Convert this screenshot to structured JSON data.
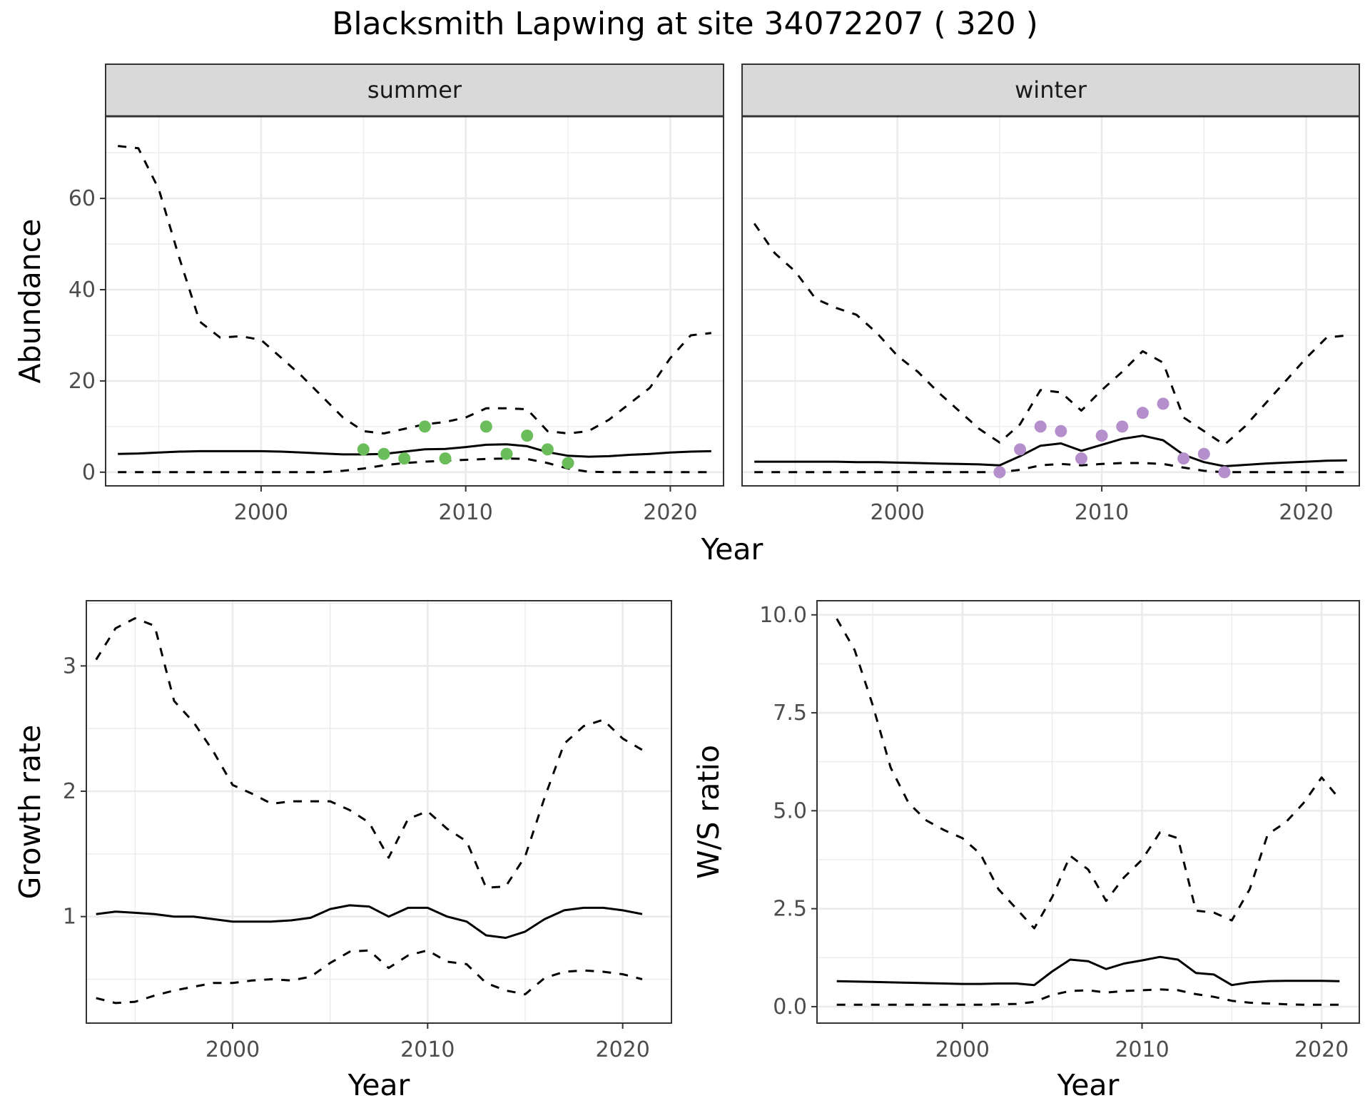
{
  "title": "Blacksmith Lapwing at site 34072207 ( 320 )",
  "colors": {
    "summer_points": "#6ABD5A",
    "winter_points": "#B58FCB",
    "line": "#000000",
    "strip_fill": "#D9D9D9",
    "grid": "#EBEBEB",
    "panel_border": "#333333"
  },
  "chart_data": [
    {
      "type": "line",
      "id": "abundance",
      "ylabel": "Abundance",
      "xlabel": "Year",
      "xlim": [
        1992.4,
        2022.6
      ],
      "ylim": [
        -3,
        78
      ],
      "xticks": [
        2000,
        2010,
        2020
      ],
      "yticks": [
        0,
        20,
        40,
        60
      ],
      "grid": true,
      "facets": [
        {
          "label": "summer",
          "x": [
            1993,
            1994,
            1995,
            1996,
            1997,
            1998,
            1999,
            2000,
            2001,
            2002,
            2003,
            2004,
            2005,
            2006,
            2007,
            2008,
            2009,
            2010,
            2011,
            2012,
            2013,
            2014,
            2015,
            2016,
            2017,
            2018,
            2019,
            2020,
            2021,
            2022
          ],
          "series": [
            {
              "style": "dashed",
              "values": [
                71.5,
                71,
                62,
                47,
                33,
                29.5,
                29.8,
                29,
                25,
                21,
                16.5,
                12,
                9,
                8.5,
                9.5,
                10.5,
                11,
                12,
                14,
                14,
                13.8,
                9,
                8.5,
                9,
                11.5,
                15,
                18.5,
                25,
                30,
                30.5
              ]
            },
            {
              "style": "solid",
              "values": [
                4,
                4.1,
                4.3,
                4.5,
                4.6,
                4.6,
                4.6,
                4.6,
                4.5,
                4.3,
                4.1,
                3.9,
                3.9,
                4,
                4.5,
                5,
                5.1,
                5.5,
                6,
                6.1,
                5.7,
                4.4,
                3.6,
                3.4,
                3.5,
                3.8,
                4,
                4.3,
                4.5,
                4.6
              ]
            },
            {
              "style": "dashed",
              "values": [
                0,
                0,
                0,
                0,
                0,
                0,
                0,
                0,
                0,
                0,
                0,
                0.3,
                0.8,
                1.5,
                2,
                2.3,
                2.5,
                2.7,
                2.9,
                3,
                2.9,
                2,
                0.8,
                0.1,
                0,
                0,
                0,
                0,
                0,
                0
              ]
            }
          ],
          "points": {
            "x": [
              2005,
              2006,
              2007,
              2008,
              2009,
              2011,
              2012,
              2013,
              2014,
              2015
            ],
            "y": [
              5,
              4,
              3,
              10,
              3,
              10,
              4,
              8,
              5,
              2
            ]
          }
        },
        {
          "label": "winter",
          "x": [
            1993,
            1994,
            1995,
            1996,
            1997,
            1998,
            1999,
            2000,
            2001,
            2002,
            2003,
            2004,
            2005,
            2006,
            2007,
            2008,
            2009,
            2010,
            2011,
            2012,
            2013,
            2014,
            2015,
            2016,
            2017,
            2018,
            2019,
            2020,
            2021,
            2022
          ],
          "series": [
            {
              "style": "dashed",
              "values": [
                54.5,
                48,
                44,
                38,
                36,
                34.5,
                30.5,
                25.5,
                22,
                17.5,
                13.5,
                9.5,
                6.5,
                10.5,
                18,
                17.5,
                13.5,
                18,
                22,
                26.5,
                24,
                12,
                9,
                6,
                10,
                15,
                20,
                25,
                29.5,
                30
              ]
            },
            {
              "style": "solid",
              "values": [
                2.3,
                2.3,
                2.3,
                2.3,
                2.3,
                2.2,
                2.2,
                2.1,
                2,
                1.9,
                1.8,
                1.7,
                1.5,
                3.5,
                5.8,
                6.3,
                4.7,
                6,
                7.3,
                8,
                7,
                3.8,
                2.2,
                1.3,
                1.6,
                1.9,
                2.1,
                2.3,
                2.5,
                2.6
              ]
            },
            {
              "style": "dashed",
              "values": [
                0,
                0,
                0,
                0,
                0,
                0,
                0,
                0,
                0,
                0,
                0,
                0,
                0,
                0.5,
                1.5,
                1.8,
                1.5,
                1.8,
                2,
                2,
                1.8,
                1,
                0.3,
                0,
                0,
                0,
                0,
                0,
                0,
                0
              ]
            }
          ],
          "points": {
            "x": [
              2005,
              2006,
              2007,
              2008,
              2009,
              2010,
              2011,
              2012,
              2013,
              2014,
              2015,
              2016
            ],
            "y": [
              0,
              5,
              10,
              9,
              3,
              8,
              10,
              13,
              15,
              3,
              4,
              0
            ]
          }
        }
      ]
    },
    {
      "type": "line",
      "id": "growth",
      "ylabel": "Growth rate",
      "xlabel": "Year",
      "xlim": [
        1992.5,
        2022.5
      ],
      "ylim": [
        0.15,
        3.52
      ],
      "xticks": [
        2000,
        2010,
        2020
      ],
      "yticks": [
        1,
        2,
        3
      ],
      "grid": true,
      "x": [
        1993,
        1994,
        1995,
        1996,
        1997,
        1998,
        1999,
        2000,
        2001,
        2002,
        2003,
        2004,
        2005,
        2006,
        2007,
        2008,
        2009,
        2010,
        2011,
        2012,
        2013,
        2014,
        2015,
        2016,
        2017,
        2018,
        2019,
        2020,
        2021
      ],
      "series": [
        {
          "style": "dashed",
          "values": [
            3.05,
            3.3,
            3.38,
            3.32,
            2.72,
            2.55,
            2.32,
            2.05,
            1.98,
            1.9,
            1.92,
            1.92,
            1.92,
            1.85,
            1.75,
            1.47,
            1.78,
            1.84,
            1.7,
            1.6,
            1.23,
            1.24,
            1.48,
            1.95,
            2.38,
            2.52,
            2.57,
            2.42,
            2.33
          ]
        },
        {
          "style": "solid",
          "values": [
            1.02,
            1.04,
            1.03,
            1.02,
            1,
            1,
            0.98,
            0.96,
            0.96,
            0.96,
            0.97,
            0.99,
            1.06,
            1.09,
            1.08,
            1,
            1.07,
            1.07,
            1,
            0.96,
            0.85,
            0.83,
            0.88,
            0.98,
            1.05,
            1.07,
            1.07,
            1.05,
            1.02
          ]
        },
        {
          "style": "dashed",
          "values": [
            0.35,
            0.31,
            0.32,
            0.37,
            0.41,
            0.44,
            0.47,
            0.47,
            0.49,
            0.5,
            0.49,
            0.52,
            0.63,
            0.72,
            0.73,
            0.59,
            0.69,
            0.73,
            0.64,
            0.62,
            0.47,
            0.41,
            0.38,
            0.51,
            0.56,
            0.57,
            0.56,
            0.54,
            0.5
          ]
        }
      ]
    },
    {
      "type": "line",
      "id": "ratio",
      "ylabel": "W/S ratio",
      "xlabel": "Year",
      "xlim": [
        1991.9,
        2022.1
      ],
      "ylim": [
        -0.42,
        10.36
      ],
      "xticks": [
        2000,
        2010,
        2020
      ],
      "yticks": [
        0.0,
        2.5,
        5.0,
        7.5,
        10.0
      ],
      "ytick_labels": [
        "0.0",
        "2.5",
        "5.0",
        "7.5",
        "10.0"
      ],
      "grid": true,
      "x": [
        1993,
        1994,
        1995,
        1996,
        1997,
        1998,
        1999,
        2000,
        2001,
        2002,
        2003,
        2004,
        2005,
        2006,
        2007,
        2008,
        2009,
        2010,
        2011,
        2012,
        2013,
        2014,
        2015,
        2016,
        2017,
        2018,
        2019,
        2020,
        2021
      ],
      "series": [
        {
          "style": "dashed",
          "values": [
            9.9,
            9.1,
            7.7,
            6.1,
            5.2,
            4.75,
            4.5,
            4.3,
            3.9,
            3,
            2.5,
            2,
            2.8,
            3.85,
            3.5,
            2.7,
            3.3,
            3.75,
            4.45,
            4.3,
            2.45,
            2.4,
            2.2,
            3,
            4.4,
            4.7,
            5.2,
            5.85,
            5.3
          ]
        },
        {
          "style": "solid",
          "values": [
            0.65,
            0.64,
            0.63,
            0.62,
            0.61,
            0.6,
            0.59,
            0.58,
            0.58,
            0.59,
            0.59,
            0.55,
            0.9,
            1.2,
            1.16,
            0.96,
            1.1,
            1.18,
            1.27,
            1.2,
            0.86,
            0.82,
            0.55,
            0.62,
            0.65,
            0.66,
            0.66,
            0.66,
            0.65
          ]
        },
        {
          "style": "dashed",
          "values": [
            0.05,
            0.05,
            0.05,
            0.05,
            0.05,
            0.05,
            0.05,
            0.05,
            0.05,
            0.06,
            0.07,
            0.12,
            0.3,
            0.4,
            0.42,
            0.36,
            0.4,
            0.42,
            0.44,
            0.42,
            0.32,
            0.25,
            0.15,
            0.1,
            0.08,
            0.06,
            0.05,
            0.05,
            0.05
          ]
        }
      ]
    }
  ]
}
